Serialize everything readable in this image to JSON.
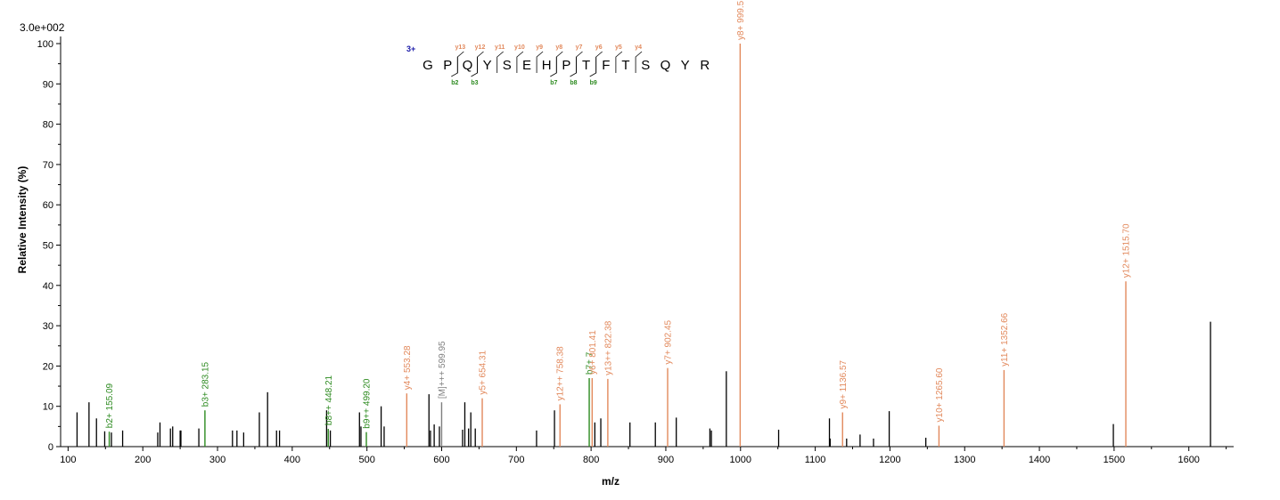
{
  "chart_data": {
    "type": "bar",
    "scale_label": "3.0e+002",
    "xlabel": "m/z",
    "ylabel": "Relative   Intensity (%)",
    "xlim": [
      90,
      1660
    ],
    "ylim": [
      0,
      100
    ],
    "x_ticks": [
      100,
      200,
      300,
      400,
      500,
      600,
      700,
      800,
      900,
      1000,
      1100,
      1200,
      1300,
      1400,
      1500,
      1600
    ],
    "y_ticks": [
      0,
      10,
      20,
      30,
      40,
      50,
      60,
      70,
      80,
      90,
      100
    ],
    "colors": {
      "y_ion": "#e2895c",
      "b_ion": "#2c8a1f",
      "precursor": "#7f7f7f",
      "unmatched": "#000000",
      "charge": "#1a1aa8"
    },
    "labeled_peaks": [
      {
        "mz": 155.09,
        "intensity": 3.7,
        "label": "b2+ 155.09",
        "ion": "b"
      },
      {
        "mz": 283.15,
        "intensity": 9,
        "label": "b3+ 283.15",
        "ion": "b"
      },
      {
        "mz": 448.21,
        "intensity": 4.4,
        "label": "b8++ 448.21",
        "ion": "b"
      },
      {
        "mz": 499.2,
        "intensity": 3.6,
        "label": "b9++ 499.20",
        "ion": "b"
      },
      {
        "mz": 553.28,
        "intensity": 13.2,
        "label": "y4+ 553.28",
        "ion": "y"
      },
      {
        "mz": 599.95,
        "intensity": 11,
        "label": "[M]+++ 599.95",
        "ion": "precursor"
      },
      {
        "mz": 654.31,
        "intensity": 12,
        "label": "y5+ 654.31",
        "ion": "y"
      },
      {
        "mz": 758.38,
        "intensity": 10.5,
        "label": "y12++ 758.38",
        "ion": "y"
      },
      {
        "mz": 797.5,
        "intensity": 17,
        "label": "b7+ 7",
        "ion": "b"
      },
      {
        "mz": 801.41,
        "intensity": 17,
        "label": "y6+ 801.41",
        "ion": "y"
      },
      {
        "mz": 822.38,
        "intensity": 16.8,
        "label": "y13++ 822.38",
        "ion": "y"
      },
      {
        "mz": 902.45,
        "intensity": 19.5,
        "label": "y7+ 902.45",
        "ion": "y"
      },
      {
        "mz": 999.51,
        "intensity": 100,
        "label": "y8+ 999.51",
        "ion": "y"
      },
      {
        "mz": 1136.57,
        "intensity": 8.5,
        "label": "y9+ 1136.57",
        "ion": "y"
      },
      {
        "mz": 1265.6,
        "intensity": 5.2,
        "label": "y10+ 1265.60",
        "ion": "y"
      },
      {
        "mz": 1352.66,
        "intensity": 19,
        "label": "y11+ 1352.66",
        "ion": "y"
      },
      {
        "mz": 1515.7,
        "intensity": 41,
        "label": "y12+ 1515.70",
        "ion": "y"
      }
    ],
    "unlabeled_peaks": [
      [
        112,
        8.5
      ],
      [
        128,
        11
      ],
      [
        138,
        7
      ],
      [
        149,
        3.8
      ],
      [
        158,
        3.5
      ],
      [
        173,
        4
      ],
      [
        220,
        3.5
      ],
      [
        223,
        6
      ],
      [
        237,
        4.5
      ],
      [
        240,
        5
      ],
      [
        250,
        4
      ],
      [
        251,
        4
      ],
      [
        275,
        4.5
      ],
      [
        320,
        4
      ],
      [
        326,
        4
      ],
      [
        335,
        3.5
      ],
      [
        356,
        8.5
      ],
      [
        367,
        13.5
      ],
      [
        379,
        4
      ],
      [
        383,
        4
      ],
      [
        446,
        9
      ],
      [
        451,
        4
      ],
      [
        490,
        8.5
      ],
      [
        492,
        5
      ],
      [
        519,
        10
      ],
      [
        523,
        5
      ],
      [
        583,
        13
      ],
      [
        585,
        4
      ],
      [
        590,
        5.5
      ],
      [
        597,
        5
      ],
      [
        628,
        4.2
      ],
      [
        631,
        11
      ],
      [
        636,
        4.5
      ],
      [
        639,
        8.5
      ],
      [
        645,
        4.5
      ],
      [
        727,
        4
      ],
      [
        751,
        9
      ],
      [
        805,
        6
      ],
      [
        813,
        7
      ],
      [
        852,
        6
      ],
      [
        886,
        6
      ],
      [
        914,
        7.2
      ],
      [
        959,
        4.5
      ],
      [
        961,
        4
      ],
      [
        981,
        18.7
      ],
      [
        1051,
        4.2
      ],
      [
        1119,
        7
      ],
      [
        1120,
        2
      ],
      [
        1142,
        2
      ],
      [
        1160,
        3
      ],
      [
        1178,
        2
      ],
      [
        1199,
        8.8
      ],
      [
        1248,
        2.2
      ],
      [
        1499,
        5.6
      ],
      [
        1629,
        31
      ]
    ],
    "peptide": {
      "charge_label": "3+",
      "letters": [
        "G",
        "P",
        "Q",
        "Y",
        "S",
        "E",
        "H",
        "P",
        "T",
        "F",
        "T",
        "S",
        "Q",
        "Y",
        "R"
      ],
      "y_ions": [
        {
          "after": 2,
          "label": "y13"
        },
        {
          "after": 3,
          "label": "y12"
        },
        {
          "after": 4,
          "label": "y11"
        },
        {
          "after": 5,
          "label": "y10"
        },
        {
          "after": 6,
          "label": "y9"
        },
        {
          "after": 7,
          "label": "y8"
        },
        {
          "after": 8,
          "label": "y7"
        },
        {
          "after": 9,
          "label": "y6"
        },
        {
          "after": 10,
          "label": "y5"
        },
        {
          "after": 11,
          "label": "y4"
        }
      ],
      "b_ions": [
        {
          "after": 2,
          "label": "b2"
        },
        {
          "after": 3,
          "label": "b3"
        },
        {
          "after": 7,
          "label": "b7"
        },
        {
          "after": 8,
          "label": "b8"
        },
        {
          "after": 9,
          "label": "b9"
        }
      ]
    }
  }
}
